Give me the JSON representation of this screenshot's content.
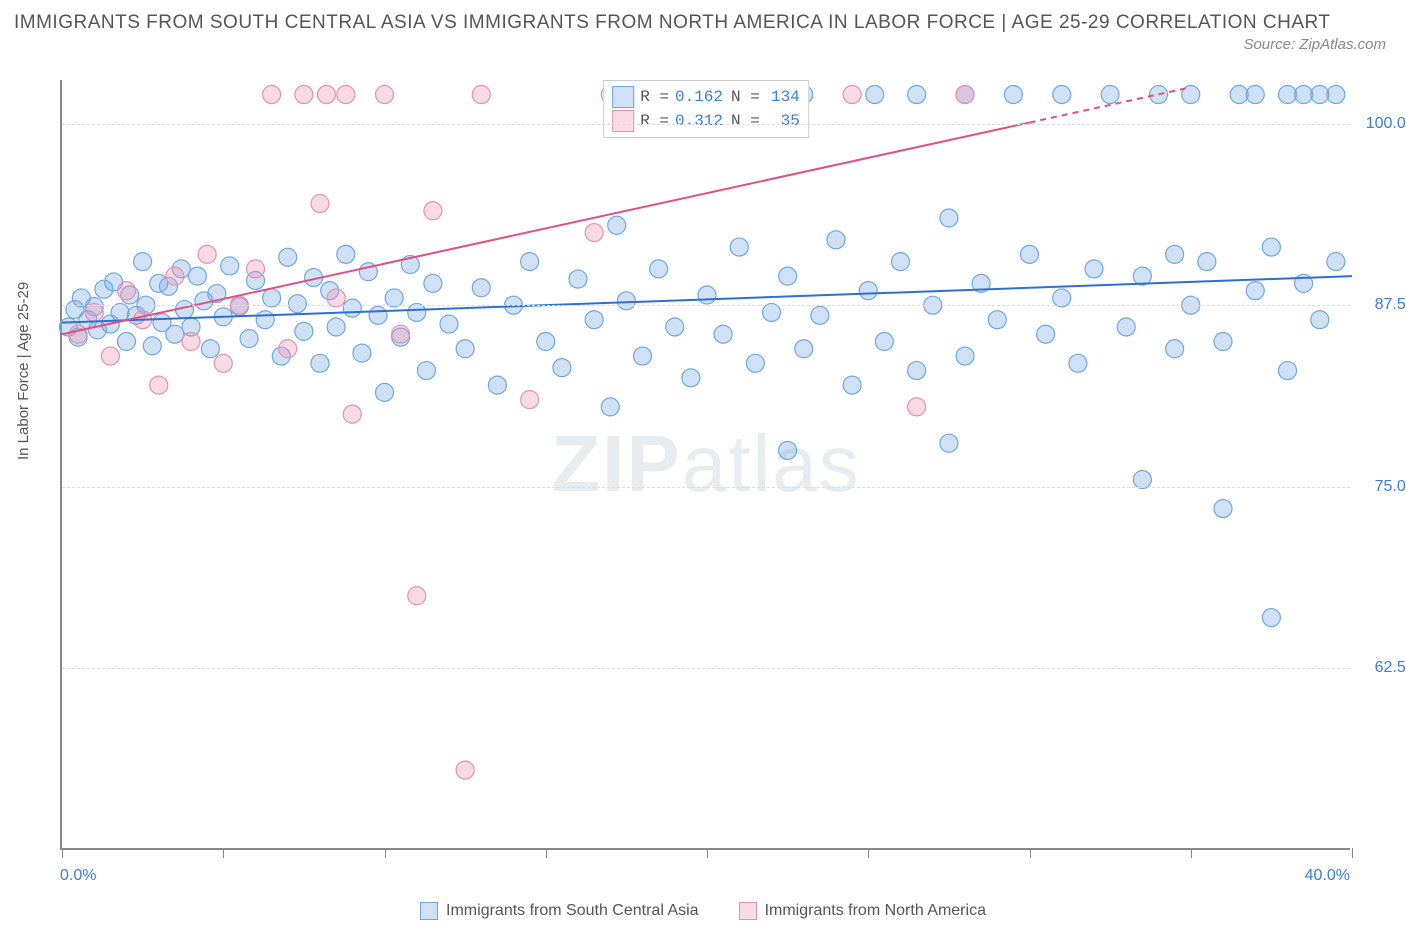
{
  "title": "IMMIGRANTS FROM SOUTH CENTRAL ASIA VS IMMIGRANTS FROM NORTH AMERICA IN LABOR FORCE | AGE 25-29 CORRELATION CHART",
  "source": "Source: ZipAtlas.com",
  "ylabel": "In Labor Force | Age 25-29",
  "watermark_bold": "ZIP",
  "watermark_rest": "atlas",
  "chart": {
    "type": "scatter",
    "xlim": [
      0,
      40
    ],
    "ylim": [
      50,
      103
    ],
    "ytick_values": [
      62.5,
      75.0,
      87.5,
      100.0
    ],
    "ytick_labels": [
      "62.5%",
      "75.0%",
      "87.5%",
      "100.0%"
    ],
    "xtick_values": [
      0,
      5,
      10,
      15,
      20,
      25,
      30,
      35,
      40
    ],
    "x_left_label": "0.0%",
    "x_right_label": "40.0%",
    "background_color": "#ffffff",
    "grid_color": "#dddddd",
    "axis_color": "#888888",
    "marker_radius": 9,
    "marker_stroke_width": 1.2,
    "trend_line_width": 2,
    "series": [
      {
        "name": "Immigrants from South Central Asia",
        "fill": "rgba(120,170,230,0.35)",
        "stroke": "#6ea8e0",
        "line_color": "#2e6fd0",
        "R": "0.162",
        "N": "134",
        "trend": {
          "x1": 0,
          "y1": 86.3,
          "x2": 40,
          "y2": 89.5
        },
        "points": [
          [
            0.2,
            86.0
          ],
          [
            0.4,
            87.2
          ],
          [
            0.5,
            85.3
          ],
          [
            0.6,
            88.0
          ],
          [
            0.8,
            86.5
          ],
          [
            1.0,
            87.4
          ],
          [
            1.1,
            85.8
          ],
          [
            1.3,
            88.6
          ],
          [
            1.5,
            86.2
          ],
          [
            1.6,
            89.1
          ],
          [
            1.8,
            87.0
          ],
          [
            2.0,
            85.0
          ],
          [
            2.1,
            88.2
          ],
          [
            2.3,
            86.8
          ],
          [
            2.5,
            90.5
          ],
          [
            2.6,
            87.5
          ],
          [
            2.8,
            84.7
          ],
          [
            3.0,
            89.0
          ],
          [
            3.1,
            86.3
          ],
          [
            3.3,
            88.8
          ],
          [
            3.5,
            85.5
          ],
          [
            3.7,
            90.0
          ],
          [
            3.8,
            87.2
          ],
          [
            4.0,
            86.0
          ],
          [
            4.2,
            89.5
          ],
          [
            4.4,
            87.8
          ],
          [
            4.6,
            84.5
          ],
          [
            4.8,
            88.3
          ],
          [
            5.0,
            86.7
          ],
          [
            5.2,
            90.2
          ],
          [
            5.5,
            87.4
          ],
          [
            5.8,
            85.2
          ],
          [
            6.0,
            89.2
          ],
          [
            6.3,
            86.5
          ],
          [
            6.5,
            88.0
          ],
          [
            6.8,
            84.0
          ],
          [
            7.0,
            90.8
          ],
          [
            7.3,
            87.6
          ],
          [
            7.5,
            85.7
          ],
          [
            7.8,
            89.4
          ],
          [
            8.0,
            83.5
          ],
          [
            8.3,
            88.5
          ],
          [
            8.5,
            86.0
          ],
          [
            8.8,
            91.0
          ],
          [
            9.0,
            87.3
          ],
          [
            9.3,
            84.2
          ],
          [
            9.5,
            89.8
          ],
          [
            9.8,
            86.8
          ],
          [
            10.0,
            81.5
          ],
          [
            10.3,
            88.0
          ],
          [
            10.5,
            85.3
          ],
          [
            10.8,
            90.3
          ],
          [
            11.0,
            87.0
          ],
          [
            11.3,
            83.0
          ],
          [
            11.5,
            89.0
          ],
          [
            12.0,
            86.2
          ],
          [
            12.5,
            84.5
          ],
          [
            13.0,
            88.7
          ],
          [
            13.5,
            82.0
          ],
          [
            14.0,
            87.5
          ],
          [
            14.5,
            90.5
          ],
          [
            15.0,
            85.0
          ],
          [
            15.5,
            83.2
          ],
          [
            16.0,
            89.3
          ],
          [
            16.5,
            86.5
          ],
          [
            17.0,
            80.5
          ],
          [
            17.2,
            93.0
          ],
          [
            17.5,
            87.8
          ],
          [
            18.0,
            84.0
          ],
          [
            18.2,
            102.0
          ],
          [
            18.5,
            90.0
          ],
          [
            19.0,
            86.0
          ],
          [
            19.5,
            82.5
          ],
          [
            20.0,
            102.0
          ],
          [
            20.0,
            88.2
          ],
          [
            20.5,
            85.5
          ],
          [
            21.0,
            91.5
          ],
          [
            21.5,
            83.5
          ],
          [
            22.0,
            87.0
          ],
          [
            22.5,
            89.5
          ],
          [
            22.5,
            77.5
          ],
          [
            23.0,
            84.5
          ],
          [
            23.0,
            102.0
          ],
          [
            23.5,
            86.8
          ],
          [
            24.0,
            92.0
          ],
          [
            24.5,
            82.0
          ],
          [
            25.0,
            88.5
          ],
          [
            25.2,
            102.0
          ],
          [
            25.5,
            85.0
          ],
          [
            26.0,
            90.5
          ],
          [
            26.5,
            83.0
          ],
          [
            26.5,
            102.0
          ],
          [
            27.0,
            87.5
          ],
          [
            27.5,
            93.5
          ],
          [
            27.5,
            78.0
          ],
          [
            28.0,
            102.0
          ],
          [
            28.0,
            84.0
          ],
          [
            28.5,
            89.0
          ],
          [
            29.0,
            86.5
          ],
          [
            29.5,
            102.0
          ],
          [
            30.0,
            91.0
          ],
          [
            30.5,
            85.5
          ],
          [
            31.0,
            88.0
          ],
          [
            31.0,
            102.0
          ],
          [
            31.5,
            83.5
          ],
          [
            32.0,
            90.0
          ],
          [
            32.5,
            102.0
          ],
          [
            33.0,
            86.0
          ],
          [
            33.5,
            89.5
          ],
          [
            33.5,
            75.5
          ],
          [
            34.0,
            102.0
          ],
          [
            34.5,
            84.5
          ],
          [
            34.5,
            91.0
          ],
          [
            35.0,
            87.5
          ],
          [
            35.0,
            102.0
          ],
          [
            35.5,
            90.5
          ],
          [
            36.0,
            85.0
          ],
          [
            36.0,
            73.5
          ],
          [
            36.5,
            102.0
          ],
          [
            37.0,
            88.5
          ],
          [
            37.0,
            102.0
          ],
          [
            37.5,
            66.0
          ],
          [
            37.5,
            91.5
          ],
          [
            38.0,
            102.0
          ],
          [
            38.0,
            83.0
          ],
          [
            38.5,
            89.0
          ],
          [
            38.5,
            102.0
          ],
          [
            39.0,
            86.5
          ],
          [
            39.0,
            102.0
          ],
          [
            39.5,
            90.5
          ],
          [
            39.5,
            102.0
          ]
        ]
      },
      {
        "name": "Immigrants from North America",
        "fill": "rgba(240,150,180,0.35)",
        "stroke": "#e890b0",
        "line_color": "#e05080",
        "R": "0.312",
        "N": "35",
        "trend_dashed_from": 30,
        "trend": {
          "x1": 0,
          "y1": 85.5,
          "x2": 35,
          "y2": 102.5
        },
        "points": [
          [
            0.5,
            85.5
          ],
          [
            1.0,
            87.0
          ],
          [
            1.5,
            84.0
          ],
          [
            2.0,
            88.5
          ],
          [
            2.5,
            86.5
          ],
          [
            3.0,
            82.0
          ],
          [
            3.5,
            89.5
          ],
          [
            4.0,
            85.0
          ],
          [
            4.5,
            91.0
          ],
          [
            5.0,
            83.5
          ],
          [
            5.5,
            87.5
          ],
          [
            6.0,
            90.0
          ],
          [
            6.5,
            102.0
          ],
          [
            7.0,
            84.5
          ],
          [
            7.5,
            102.0
          ],
          [
            8.0,
            94.5
          ],
          [
            8.2,
            102.0
          ],
          [
            8.5,
            88.0
          ],
          [
            8.8,
            102.0
          ],
          [
            9.0,
            80.0
          ],
          [
            10.0,
            102.0
          ],
          [
            10.5,
            85.5
          ],
          [
            11.0,
            67.5
          ],
          [
            11.5,
            94.0
          ],
          [
            12.5,
            55.5
          ],
          [
            13.0,
            102.0
          ],
          [
            14.5,
            81.0
          ],
          [
            16.5,
            92.5
          ],
          [
            17.0,
            102.0
          ],
          [
            19.0,
            102.0
          ],
          [
            20.5,
            102.0
          ],
          [
            21.5,
            102.0
          ],
          [
            24.5,
            102.0
          ],
          [
            26.5,
            80.5
          ],
          [
            28.0,
            102.0
          ]
        ]
      }
    ]
  },
  "bottom_legend": [
    {
      "label": "Immigrants from South Central Asia",
      "fill": "rgba(120,170,230,0.35)",
      "stroke": "#6ea8e0"
    },
    {
      "label": "Immigrants from North America",
      "fill": "rgba(240,150,180,0.35)",
      "stroke": "#e890b0"
    }
  ]
}
